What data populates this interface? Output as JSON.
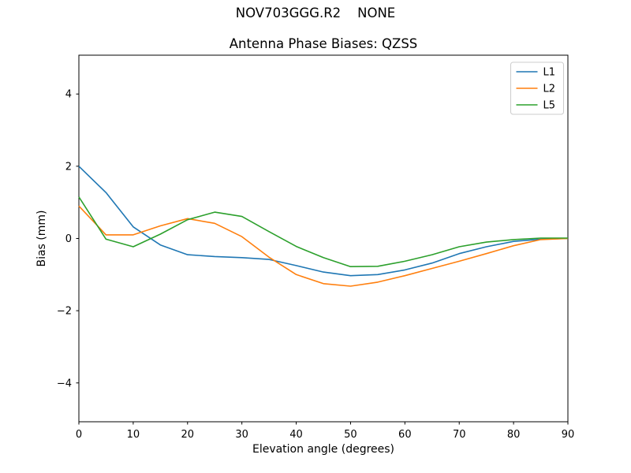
{
  "figure": {
    "suptitle": "NOV703GGG.R2    NONE"
  },
  "chart_data": {
    "type": "line",
    "title": "Antenna Phase Biases: QZSS",
    "xlabel": "Elevation angle (degrees)",
    "ylabel": "Bias (mm)",
    "xlim": [
      0,
      90
    ],
    "ylim": [
      -5.075,
      5.075
    ],
    "xticks": [
      0,
      10,
      20,
      30,
      40,
      50,
      60,
      70,
      80,
      90
    ],
    "yticks": [
      -4,
      -2,
      0,
      2,
      4
    ],
    "grid": false,
    "frame_color": "#000000",
    "legend": {
      "position": "upper right",
      "border_color": "#cccccc",
      "entries": [
        "L1",
        "L2",
        "L5"
      ]
    },
    "x": [
      0,
      5,
      10,
      15,
      20,
      25,
      30,
      35,
      40,
      45,
      50,
      55,
      60,
      65,
      70,
      75,
      80,
      85,
      90
    ],
    "series": [
      {
        "name": "L1",
        "color": "#1f77b4",
        "values": [
          2.0,
          1.27,
          0.32,
          -0.18,
          -0.45,
          -0.5,
          -0.53,
          -0.58,
          -0.75,
          -0.93,
          -1.03,
          -1.0,
          -0.87,
          -0.68,
          -0.42,
          -0.23,
          -0.08,
          -0.02,
          0.0
        ]
      },
      {
        "name": "L2",
        "color": "#ff7f0e",
        "values": [
          0.9,
          0.1,
          0.1,
          0.35,
          0.55,
          0.42,
          0.05,
          -0.52,
          -1.0,
          -1.25,
          -1.32,
          -1.21,
          -1.03,
          -0.83,
          -0.63,
          -0.42,
          -0.2,
          -0.03,
          0.0
        ]
      },
      {
        "name": "L5",
        "color": "#2ca02c",
        "values": [
          1.15,
          -0.02,
          -0.23,
          0.12,
          0.52,
          0.73,
          0.61,
          0.19,
          -0.22,
          -0.53,
          -0.78,
          -0.77,
          -0.63,
          -0.45,
          -0.23,
          -0.1,
          -0.03,
          0.01,
          0.01
        ]
      }
    ]
  }
}
